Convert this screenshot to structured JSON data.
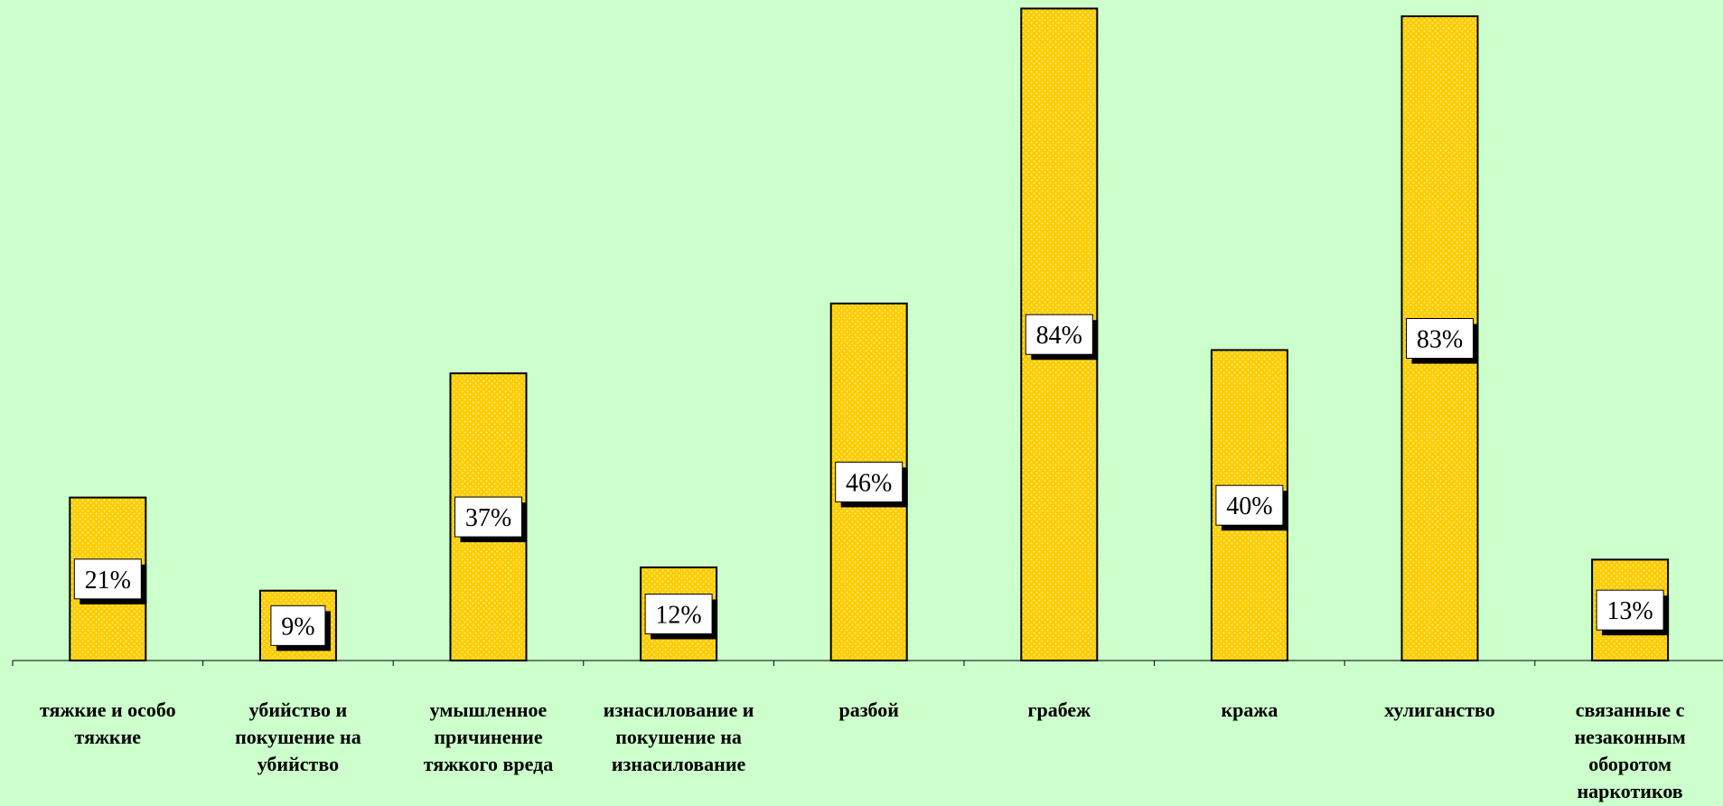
{
  "colors": {
    "background": "#ccffcc",
    "bar_fill": "#ffcc00",
    "bar_dots": "#fff3b0",
    "bar_stroke": "#000000",
    "label_box": "#ffffff",
    "label_shadow": "#000000",
    "axis": "#000000"
  },
  "chart_data": {
    "type": "bar",
    "title": "",
    "xlabel": "",
    "ylabel": "",
    "ylim": [
      0,
      85
    ],
    "grid": false,
    "legend": "none",
    "categories": [
      [
        "тяжкие и особо",
        "тяжкие"
      ],
      [
        "убийство и",
        "покушение на",
        "убийство"
      ],
      [
        "умышленное",
        "причинение",
        "тяжкого вреда"
      ],
      [
        "изнасилование и",
        "покушение на",
        "изнасилование"
      ],
      [
        "разбой"
      ],
      [
        "грабеж"
      ],
      [
        "кража"
      ],
      [
        "хулиганство"
      ],
      [
        "связанные с",
        "незаконным",
        "оборотом",
        "наркотиков"
      ]
    ],
    "values": [
      21,
      9,
      37,
      12,
      46,
      84,
      40,
      83,
      13
    ],
    "data_labels": [
      "21%",
      "9%",
      "37%",
      "12%",
      "46%",
      "84%",
      "40%",
      "83%",
      "13%"
    ]
  }
}
